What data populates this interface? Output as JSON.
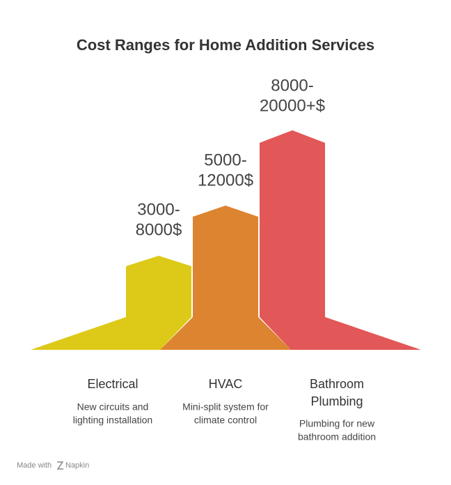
{
  "title": "Cost Ranges for Home Addition Services",
  "items": [
    {
      "label": [
        "Electrical"
      ],
      "description": [
        "New circuits and",
        "lighting installation"
      ],
      "value_label": [
        "3000-",
        "8000$"
      ],
      "color": "#ddc918"
    },
    {
      "label": [
        "HVAC"
      ],
      "description": [
        "Mini-split system for",
        "climate control"
      ],
      "value_label": [
        "5000-",
        "12000$"
      ],
      "color": "#dd8430"
    },
    {
      "label": [
        "Bathroom",
        "Plumbing"
      ],
      "description": [
        "Plumbing for new",
        "bathroom addition"
      ],
      "value_label": [
        "8000-",
        "20000+$"
      ],
      "color": "#e25757"
    }
  ],
  "footer": {
    "prefix": "Made with",
    "brand": "Napkin"
  }
}
